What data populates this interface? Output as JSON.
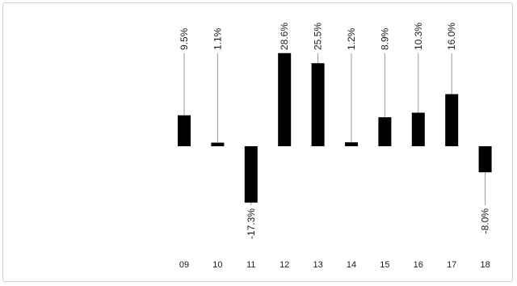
{
  "chart_data": {
    "type": "bar",
    "categories": [
      "09",
      "10",
      "11",
      "12",
      "13",
      "14",
      "15",
      "16",
      "17",
      "18"
    ],
    "values": [
      9.5,
      1.1,
      -17.3,
      28.6,
      25.5,
      1.2,
      8.9,
      10.3,
      16.0,
      -8.0
    ],
    "data_labels": [
      "9.5%",
      "1.1%",
      "-17.3%",
      "28.6%",
      "25.5%",
      "1.2%",
      "8.9%",
      "10.3%",
      "16.0%",
      "-8.0%"
    ],
    "title": "",
    "xlabel": "",
    "ylabel": "",
    "ylim": [
      -20,
      30
    ],
    "grid": false,
    "legend": "none",
    "bar_color": "#000000",
    "leader_color": "#9a9a9a"
  }
}
